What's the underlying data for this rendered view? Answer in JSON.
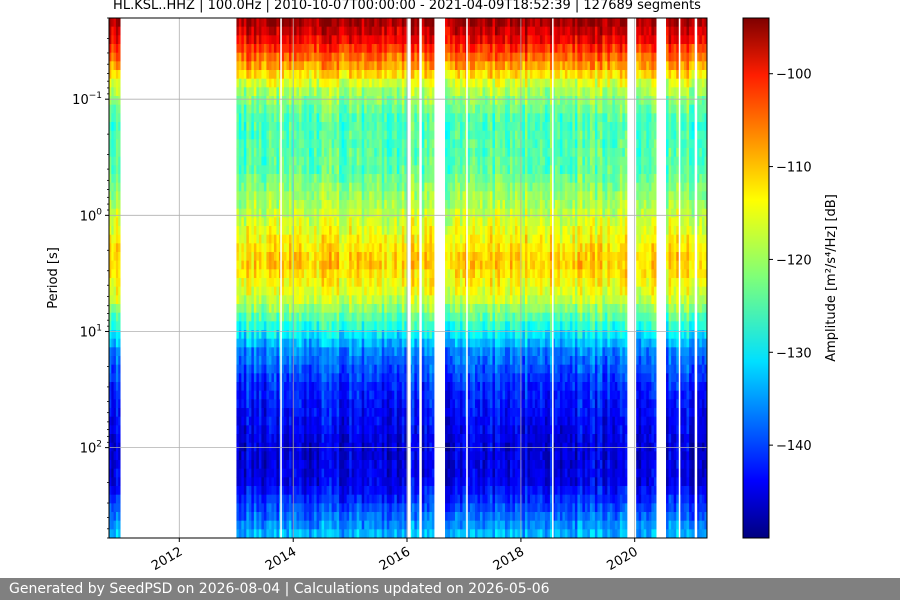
{
  "title": "HL.KSL..HHZ | 100.0Hz | 2010-10-07T00:00:00 - 2021-04-09T18:52:39 | 127689 segments",
  "footer": "Generated by SeedPSD on 2026-08-04 | Calculations updated on 2026-05-06",
  "chart_data": {
    "type": "heatmap",
    "title": "HL.KSL..HHZ | 100.0Hz | 2010-10-07T00:00:00 - 2021-04-09T18:52:39 | 127689 segments",
    "xlabel": "",
    "ylabel": "Period [s]",
    "x_scale": "time",
    "y_scale": "log",
    "y_inverted": true,
    "xlim": [
      "2010-10-07",
      "2021-04-09"
    ],
    "ylim": [
      0.02,
      600
    ],
    "x_ticks": [
      "2012",
      "2014",
      "2016",
      "2018",
      "2020"
    ],
    "y_ticks": [
      {
        "value": 0.1,
        "base": "10",
        "exp": "−1"
      },
      {
        "value": 1,
        "base": "10",
        "exp": "0"
      },
      {
        "value": 10,
        "base": "10",
        "exp": "1"
      },
      {
        "value": 100,
        "base": "10",
        "exp": "2"
      }
    ],
    "grid": true,
    "colormap": "jet",
    "colorbar": {
      "label": "Amplitude [m²/s⁴/Hz] [dB]",
      "range": [
        -150,
        -94
      ],
      "ticks": [
        "−100",
        "−110",
        "−120",
        "−130",
        "−140"
      ],
      "tick_values": [
        -100,
        -110,
        -120,
        -130,
        -140
      ]
    },
    "data_intervals": [
      [
        "2010-10-07",
        "2010-12-20"
      ],
      [
        "2013-01-01",
        "2016-06-25"
      ],
      [
        "2016-09-01",
        "2019-11-15"
      ],
      [
        "2020-01-10",
        "2020-05-20"
      ],
      [
        "2020-07-20",
        "2021-04-09"
      ]
    ],
    "gaps": [
      [
        "2010-12-20",
        "2013-01-01"
      ],
      [
        "2013-10-10",
        "2013-10-20"
      ],
      [
        "2016-01-05",
        "2016-01-25"
      ],
      [
        "2016-03-20",
        "2016-04-05"
      ],
      [
        "2016-06-25",
        "2016-09-01"
      ],
      [
        "2017-01-15",
        "2017-01-25"
      ],
      [
        "2018-07-20",
        "2018-07-28"
      ],
      [
        "2019-11-15",
        "2020-01-10"
      ],
      [
        "2020-05-20",
        "2020-07-20"
      ],
      [
        "2020-10-10",
        "2020-10-20"
      ],
      [
        "2021-01-20",
        "2021-02-05"
      ]
    ],
    "amplitude_profile_by_period_db": [
      {
        "period": 0.02,
        "amplitude_db": -95
      },
      {
        "period": 0.03,
        "amplitude_db": -100
      },
      {
        "period": 0.05,
        "amplitude_db": -109
      },
      {
        "period": 0.08,
        "amplitude_db": -119
      },
      {
        "period": 0.15,
        "amplitude_db": -125
      },
      {
        "period": 0.4,
        "amplitude_db": -124
      },
      {
        "period": 1.0,
        "amplitude_db": -118
      },
      {
        "period": 2.5,
        "amplitude_db": -112
      },
      {
        "period": 5.0,
        "amplitude_db": -117
      },
      {
        "period": 8.0,
        "amplitude_db": -125
      },
      {
        "period": 15,
        "amplitude_db": -136
      },
      {
        "period": 30,
        "amplitude_db": -141
      },
      {
        "period": 100,
        "amplitude_db": -145
      },
      {
        "period": 200,
        "amplitude_db": -144
      },
      {
        "period": 300,
        "amplitude_db": -140
      },
      {
        "period": 600,
        "amplitude_db": -132
      }
    ]
  }
}
